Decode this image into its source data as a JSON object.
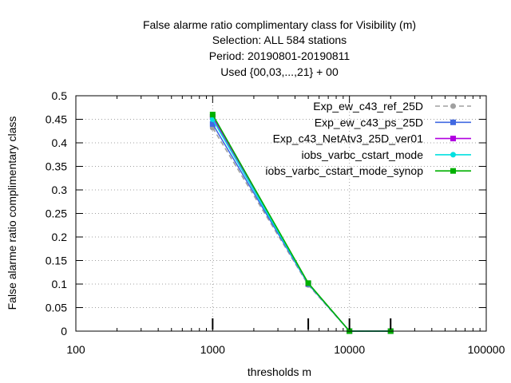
{
  "chart_data": {
    "type": "line",
    "title_lines": [
      "False alarme ratio complimentary class  for Visibility (m)",
      "Selection: ALL    584 stations",
      "Period: 20190801-20190811",
      "Used {00,03,...,21} + 00"
    ],
    "xlabel": "thresholds m",
    "ylabel": "False alarme ratio complimentary class",
    "x_scale": "log",
    "xlim": [
      100,
      100000
    ],
    "ylim": [
      0,
      0.5
    ],
    "x_ticks": [
      100,
      1000,
      10000,
      100000
    ],
    "x_tick_labels": [
      "100",
      "1000",
      "10000",
      "100000"
    ],
    "y_ticks": [
      0,
      0.05,
      0.1,
      0.15,
      0.2,
      0.25,
      0.3,
      0.35,
      0.4,
      0.45,
      0.5
    ],
    "y_tick_labels": [
      "0",
      "0.05",
      "0.1",
      "0.15",
      "0.2",
      "0.25",
      "0.3",
      "0.35",
      "0.4",
      "0.45",
      "0.5"
    ],
    "grid": true,
    "legend_position": "top-right",
    "x": [
      1000,
      5000,
      10000,
      20000
    ],
    "series": [
      {
        "name": "Exp_ew_c43_ref_25D",
        "color": "#a0a0a0",
        "dashed": true,
        "marker": "circle",
        "values": [
          0.432,
          0.098,
          0.0,
          0.0
        ]
      },
      {
        "name": "Exp_ew_c43_ps_25D",
        "color": "#4169e1",
        "dashed": false,
        "marker": "square",
        "values": [
          0.44,
          0.1,
          0.0,
          0.0
        ]
      },
      {
        "name": "Exp_c43_NetAtv3_25D_ver01",
        "color": "#b000e0",
        "dashed": false,
        "marker": "square",
        "values": [
          0.455,
          0.101,
          0.0,
          0.0
        ]
      },
      {
        "name": "iobs_varbc_cstart_mode",
        "color": "#00e0e0",
        "dashed": false,
        "marker": "circle",
        "values": [
          0.45,
          0.101,
          0.0,
          0.0
        ]
      },
      {
        "name": "iobs_varbc_cstart_mode_synop",
        "color": "#00b000",
        "dashed": false,
        "marker": "square",
        "values": [
          0.46,
          0.102,
          0.0,
          0.0
        ]
      }
    ]
  }
}
